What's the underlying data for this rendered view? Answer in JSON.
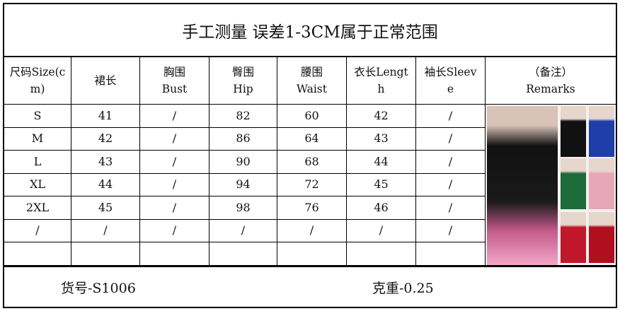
{
  "title": "手工测量 误差1-3CM属于正常范围",
  "headers": [
    [
      "尺码Size(c",
      "m)"
    ],
    [
      "裙长",
      ""
    ],
    [
      "胸围",
      "Bust"
    ],
    [
      "臀围",
      "Hip"
    ],
    [
      "腰围",
      "Waist"
    ],
    [
      "衣长Lengt",
      "h"
    ],
    [
      "袖长Sleev",
      "e"
    ],
    [
      "（备注）",
      "Remarks"
    ]
  ],
  "rows": [
    [
      "S",
      "41",
      "/",
      "82",
      "60",
      "42",
      "/"
    ],
    [
      "M",
      "42",
      "/",
      "86",
      "64",
      "43",
      "/"
    ],
    [
      "L",
      "43",
      "/",
      "90",
      "68",
      "44",
      "/"
    ],
    [
      "XL",
      "44",
      "/",
      "94",
      "72",
      "45",
      "/"
    ],
    [
      "2XL",
      "45",
      "/",
      "98",
      "76",
      "46",
      "/"
    ],
    [
      "/",
      "/",
      "/",
      "/",
      "/",
      "/",
      "/"
    ],
    [
      "",
      "",
      "",
      "",
      "",
      "",
      ""
    ]
  ],
  "footer": {
    "item_no": "货号-S1006",
    "weight": "克重-0.25"
  },
  "product_colors": [
    "#111111",
    "#1f3fa8",
    "#1e6b3a",
    "#e8a7b8",
    "#c0182a",
    "#b0101e"
  ]
}
